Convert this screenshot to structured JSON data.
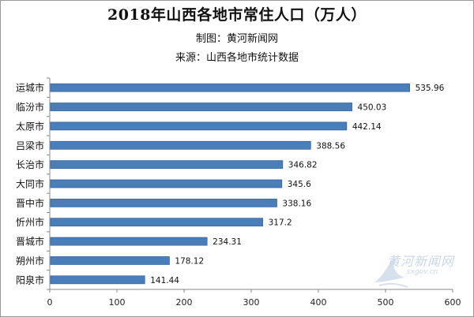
{
  "chart_data": {
    "type": "bar",
    "orientation": "horizontal",
    "title": "2018年山西各地市常住人口（万人）",
    "subtitle_lines": [
      "制图：黄河新闻网",
      "来源：山西各地市统计数据"
    ],
    "categories": [
      "运城市",
      "临汾市",
      "太原市",
      "吕梁市",
      "长治市",
      "大同市",
      "晋中市",
      "忻州市",
      "晋城市",
      "朔州市",
      "阳泉市"
    ],
    "values": [
      535.96,
      450.03,
      442.14,
      388.56,
      346.82,
      345.6,
      338.16,
      317.2,
      234.31,
      178.12,
      141.44
    ],
    "value_labels": [
      "535.96",
      "450.03",
      "442.14",
      "388.56",
      "346.82",
      "345.6",
      "338.16",
      "317.2",
      "234.31",
      "178.12",
      "141.44"
    ],
    "xlim": [
      0,
      600
    ],
    "x_ticks": [
      0,
      100,
      200,
      300,
      400,
      500,
      600
    ],
    "bar_color": "#4a7ebb",
    "bar_border": "#3a67a0",
    "grid": false,
    "legend": "none"
  },
  "watermark": {
    "text": "黄河新闻网",
    "url": "sxgov.cn"
  }
}
